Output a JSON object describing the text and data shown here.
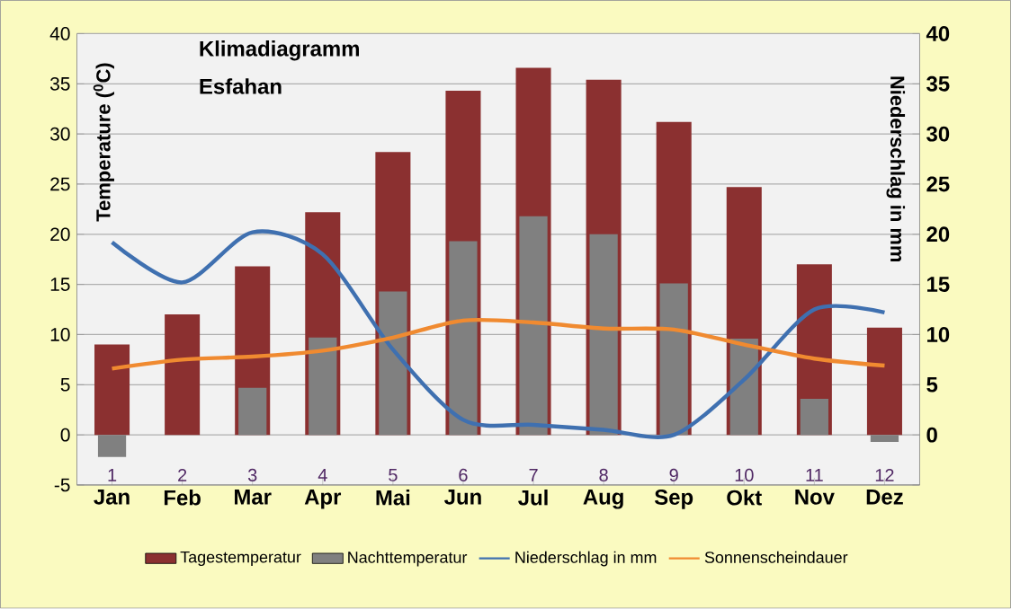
{
  "chart_data": {
    "type": "bar",
    "title": "Klimadiagramm",
    "subtitle": "Esfahan",
    "ylabel": "Temperature ($^{0}$C)",
    "y2label": "Niederschlag in mm",
    "categories": [
      "Jan",
      "Feb",
      "Mar",
      "Apr",
      "Mai",
      "Jun",
      "Jul",
      "Aug",
      "Sep",
      "Okt",
      "Nov",
      "Dez"
    ],
    "series": [
      {
        "name": "Tagestemperatur",
        "color": "#8b3030",
        "values": [
          9,
          12,
          16.8,
          22.2,
          28.2,
          34.3,
          36.6,
          35.4,
          31.2,
          24.7,
          17,
          10.7
        ]
      },
      {
        "name": "Nachttemperatur",
        "color": "#808080",
        "values": [
          -2.2,
          0,
          4.7,
          9.7,
          14.3,
          19.3,
          21.8,
          20,
          15.1,
          9.6,
          3.6,
          -0.7
        ]
      },
      {
        "name": "Niederschlag in mm",
        "type": "line",
        "axis": "y2",
        "color": "#3f70b0",
        "values": [
          19.2,
          15.2,
          20.2,
          18,
          8.5,
          1.5,
          1,
          0.5,
          0,
          5.5,
          12.5,
          12.2
        ]
      },
      {
        "name": "Sonnenscheindauer",
        "type": "line",
        "axis": "y2",
        "color": "#f08a30",
        "values": [
          6.6,
          7.5,
          7.8,
          8.4,
          9.7,
          11.4,
          11.2,
          10.6,
          10.5,
          9,
          7.6,
          6.9
        ]
      }
    ],
    "ylim": [
      -5,
      40
    ],
    "yticks": [
      -5,
      0,
      5,
      10,
      15,
      20,
      25,
      30,
      35,
      40
    ],
    "y2lim": [
      -5,
      40
    ],
    "y2ticks": [
      {
        "value": -5,
        "label": null
      },
      0,
      5,
      10,
      15,
      20,
      25,
      30,
      35,
      40
    ],
    "grid": "y",
    "legend": "bottom",
    "annotations": [
      "1",
      "2",
      "3",
      "4",
      "5",
      "6",
      "7",
      "8",
      "9",
      "10",
      "11",
      "12"
    ]
  }
}
